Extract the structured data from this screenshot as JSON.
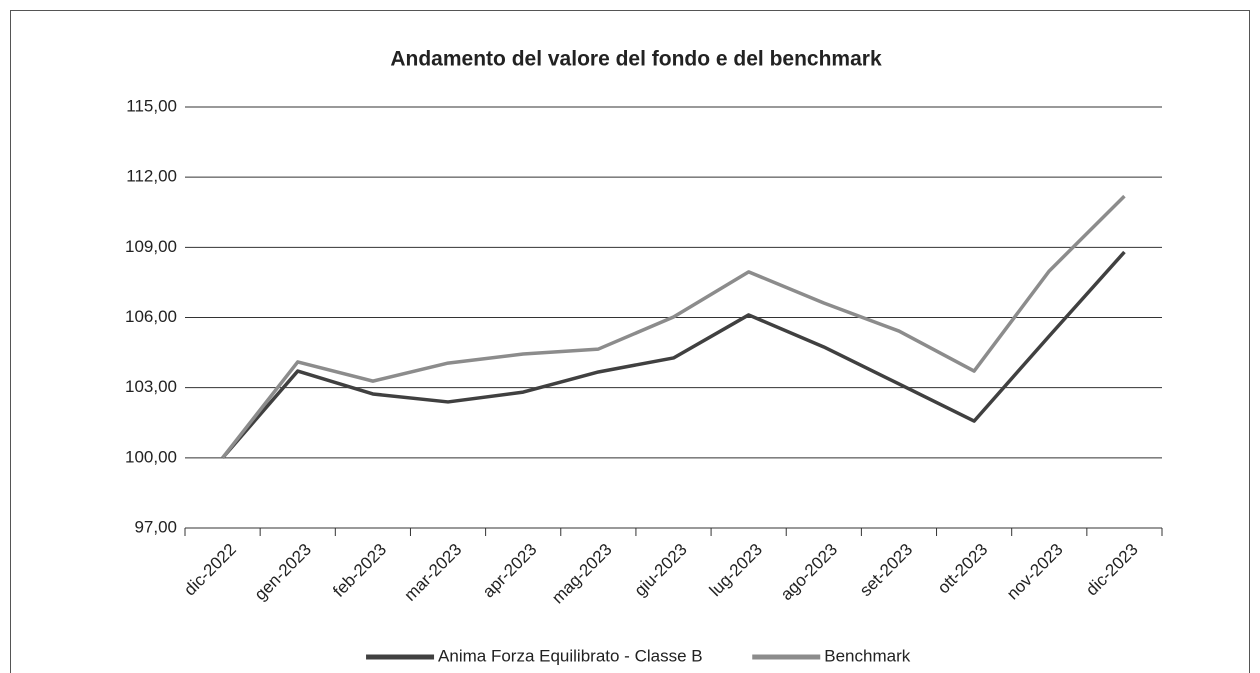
{
  "chart_data": {
    "type": "line",
    "title": "Andamento del valore del fondo e del benchmark",
    "categories": [
      "dic-2022",
      "gen-2023",
      "feb-2023",
      "mar-2023",
      "apr-2023",
      "mag-2023",
      "giu-2023",
      "lug-2023",
      "ago-2023",
      "set-2023",
      "ott-2023",
      "nov-2023",
      "dic-2023"
    ],
    "series": [
      {
        "name": "Anima Forza Equilibrato - Classe B",
        "color": "#404040",
        "values": [
          100,
          103.71,
          102.73,
          102.39,
          102.81,
          103.67,
          104.27,
          106.11,
          104.74,
          103.16,
          101.57,
          105.21,
          108.8
        ]
      },
      {
        "name": "Benchmark",
        "color": "#8c8c8c",
        "values": [
          100,
          104.1,
          103.28,
          104.05,
          104.44,
          104.65,
          106.02,
          107.95,
          106.62,
          105.42,
          103.71,
          107.99,
          111.19
        ]
      }
    ],
    "ylim": [
      97,
      115
    ],
    "yticks": [
      {
        "value": 97,
        "label": "97,00"
      },
      {
        "value": 100,
        "label": "100,00"
      },
      {
        "value": 103,
        "label": "103,00"
      },
      {
        "value": 106,
        "label": "106,00"
      },
      {
        "value": 109,
        "label": "109,00"
      },
      {
        "value": 112,
        "label": "112,00"
      },
      {
        "value": 115,
        "label": "115,00"
      }
    ],
    "grid": true,
    "legend": "bottom"
  }
}
